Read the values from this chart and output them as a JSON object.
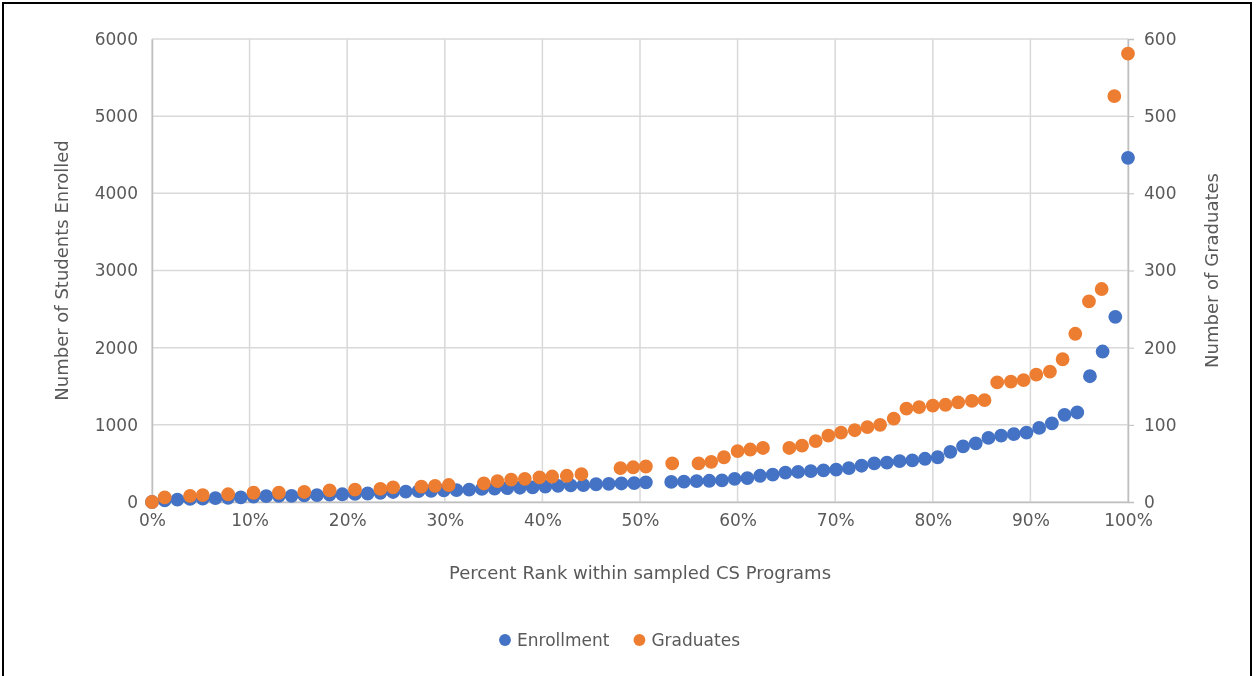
{
  "chart_data": {
    "type": "scatter",
    "xlabel": "Percent Rank within sampled CS Programs",
    "ylabel": "Number of Students Enrolled",
    "y2label": "Number of Graduates",
    "xlim": [
      0,
      1
    ],
    "xticks": [
      {
        "value": 0,
        "label": "0%"
      },
      {
        "value": 0.1,
        "label": "10%"
      },
      {
        "value": 0.2,
        "label": "20%"
      },
      {
        "value": 0.3,
        "label": "30%"
      },
      {
        "value": 0.4,
        "label": "40%"
      },
      {
        "value": 0.5,
        "label": "50%"
      },
      {
        "value": 0.6,
        "label": "60%"
      },
      {
        "value": 0.7,
        "label": "70%"
      },
      {
        "value": 0.8,
        "label": "80%"
      },
      {
        "value": 0.9,
        "label": "90%"
      },
      {
        "value": 1,
        "label": "100%"
      }
    ],
    "ylim": [
      0,
      6000
    ],
    "yticks": [
      0,
      1000,
      2000,
      3000,
      4000,
      5000,
      6000
    ],
    "y2lim": [
      0,
      600
    ],
    "y2ticks": [
      0,
      100,
      200,
      300,
      400,
      500,
      600
    ],
    "grid": true,
    "legend": "bottom",
    "marker": "circle",
    "series": [
      {
        "name": "Enrollment",
        "color": "#4472c4",
        "x": [
          0,
          0.013,
          0.026,
          0.039,
          0.052,
          0.065,
          0.078,
          0.091,
          0.104,
          0.117,
          0.13,
          0.143,
          0.156,
          0.169,
          0.182,
          0.195,
          0.208,
          0.221,
          0.234,
          0.247,
          0.26,
          0.273,
          0.286,
          0.299,
          0.312,
          0.325,
          0.338,
          0.351,
          0.364,
          0.377,
          0.39,
          0.403,
          0.416,
          0.429,
          0.442,
          0.455,
          0.468,
          0.481,
          0.494,
          0.506,
          0.532,
          0.545,
          0.558,
          0.571,
          0.584,
          0.597,
          0.61,
          0.623,
          0.636,
          0.649,
          0.662,
          0.675,
          0.688,
          0.701,
          0.714,
          0.727,
          0.74,
          0.753,
          0.766,
          0.779,
          0.792,
          0.805,
          0.818,
          0.831,
          0.844,
          0.857,
          0.87,
          0.883,
          0.896,
          0.909,
          0.922,
          0.935,
          0.948,
          0.961,
          0.974,
          0.987,
          1
        ],
        "values": [
          0,
          20,
          30,
          40,
          45,
          50,
          55,
          60,
          70,
          75,
          80,
          80,
          85,
          90,
          95,
          100,
          105,
          110,
          120,
          130,
          135,
          140,
          145,
          150,
          155,
          160,
          170,
          175,
          180,
          185,
          190,
          200,
          210,
          215,
          220,
          230,
          235,
          240,
          245,
          255,
          260,
          265,
          270,
          275,
          280,
          300,
          310,
          340,
          355,
          380,
          390,
          400,
          410,
          420,
          440,
          470,
          500,
          510,
          530,
          540,
          560,
          580,
          650,
          720,
          760,
          830,
          860,
          880,
          900,
          960,
          1020,
          1130,
          1160,
          1630,
          1950,
          2400,
          4460
        ]
      },
      {
        "name": "Graduates",
        "color": "#ed7d31",
        "axis": "y2",
        "x": [
          0,
          0.013,
          0.039,
          0.052,
          0.078,
          0.104,
          0.13,
          0.156,
          0.182,
          0.208,
          0.234,
          0.247,
          0.276,
          0.29,
          0.304,
          0.34,
          0.354,
          0.368,
          0.382,
          0.397,
          0.41,
          0.425,
          0.44,
          0.48,
          0.493,
          0.506,
          0.533,
          0.56,
          0.573,
          0.586,
          0.6,
          0.613,
          0.626,
          0.653,
          0.666,
          0.68,
          0.693,
          0.706,
          0.72,
          0.733,
          0.746,
          0.76,
          0.773,
          0.786,
          0.8,
          0.813,
          0.826,
          0.84,
          0.853,
          0.866,
          0.88,
          0.893,
          0.906,
          0.92,
          0.933,
          0.946,
          0.96,
          0.973,
          0.986,
          1
        ],
        "values": [
          0,
          6,
          8,
          9,
          10,
          12,
          12,
          13,
          15,
          16,
          17,
          19,
          20,
          21,
          22,
          24,
          27,
          29,
          30,
          32,
          33,
          34,
          36,
          44,
          45,
          46,
          50,
          50,
          52,
          58,
          66,
          68,
          70,
          70,
          73,
          79,
          86,
          90,
          93,
          97,
          100,
          108,
          121,
          123,
          125,
          126,
          129,
          131,
          132,
          155,
          156,
          158,
          165,
          169,
          185,
          218,
          260,
          276,
          526,
          581
        ]
      }
    ]
  }
}
